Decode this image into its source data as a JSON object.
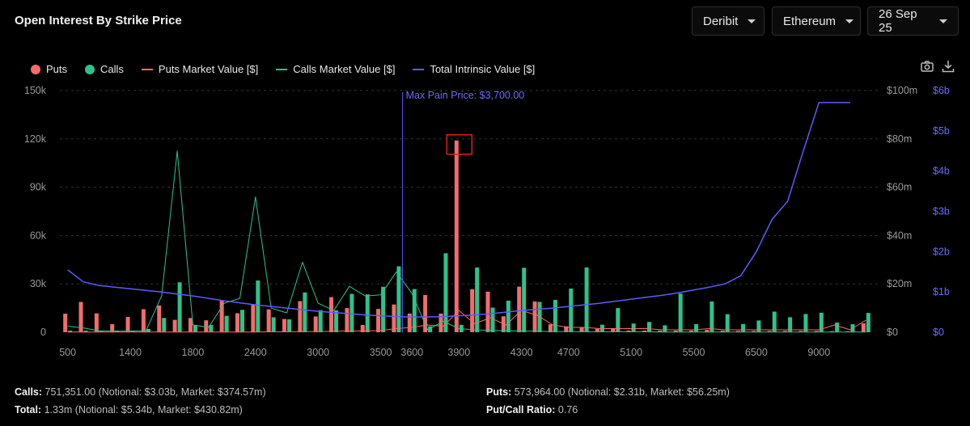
{
  "header": {
    "title": "Open Interest By Strike Price",
    "exchange": "Deribit",
    "asset": "Ethereum",
    "expiry": "26 Sep 25"
  },
  "legend": [
    {
      "label": "Puts",
      "kind": "dot",
      "color": "#f56b6b"
    },
    {
      "label": "Calls",
      "kind": "dot",
      "color": "#2ec28a"
    },
    {
      "label": "Puts Market Value [$]",
      "kind": "line",
      "color": "#f56b6b"
    },
    {
      "label": "Calls Market Value [$]",
      "kind": "line",
      "color": "#2ec28a"
    },
    {
      "label": "Total Intrinsic Value [$]",
      "kind": "line",
      "color": "#5b5bff"
    }
  ],
  "toolbar": {
    "camera": "camera-icon",
    "download": "download-icon"
  },
  "chart_data": {
    "type": "bar",
    "annotation": "Max Pain Price: $3,700.00",
    "max_pain_index": 22,
    "highlight_index": 25,
    "y_left_ticks": [
      "0",
      "30k",
      "60k",
      "90k",
      "120k",
      "150k"
    ],
    "y_left_range": [
      0,
      150000
    ],
    "y_mid_ticks": [
      "$0",
      "$20m",
      "$40m",
      "$60m",
      "$80m",
      "$100m"
    ],
    "y_mid_range": [
      0,
      100
    ],
    "y_right_ticks": [
      "$0",
      "$1b",
      "$2b",
      "$3b",
      "$4b",
      "$5b",
      "$6b"
    ],
    "y_right_range": [
      0,
      6
    ],
    "x_tick_labels": [
      "500",
      "1400",
      "1800",
      "2400",
      "3000",
      "3500",
      "3600",
      "3900",
      "4300",
      "4700",
      "5100",
      "5500",
      "6500",
      "9000"
    ],
    "x_tick_indices": [
      0,
      4,
      8,
      12,
      16,
      20,
      22,
      25,
      29,
      32,
      36,
      40,
      44,
      48
    ],
    "n_strikes": 52,
    "puts_oi": [
      11500,
      18800,
      11700,
      5000,
      9500,
      14300,
      16600,
      7700,
      8800,
      7400,
      19500,
      11800,
      17400,
      14200,
      8200,
      19300,
      9800,
      21800,
      15000,
      4500,
      14500,
      17200,
      11600,
      23100,
      11600,
      119000,
      26700,
      25200,
      9900,
      28300,
      19100,
      4900,
      3700,
      3200,
      2100,
      2100,
      1000,
      1000,
      1000,
      1000,
      1000,
      1500,
      1000,
      800,
      800,
      800,
      800,
      800,
      800,
      700,
      600,
      5500
    ],
    "calls_oi": [
      1000,
      1000,
      1000,
      1000,
      1000,
      2000,
      8900,
      31000,
      4500,
      4500,
      10200,
      13900,
      32100,
      9300,
      8000,
      24700,
      13700,
      13600,
      23800,
      23500,
      28200,
      40900,
      26800,
      3700,
      49000,
      4600,
      40200,
      15300,
      19600,
      40000,
      18800,
      20100,
      27100,
      40200,
      4700,
      15000,
      5400,
      6400,
      4300,
      24000,
      5000,
      19100,
      11200,
      5100,
      7300,
      12800,
      9300,
      11300,
      12100,
      6000,
      5000,
      12000
    ],
    "calls_market_value_m": [
      2.5,
      1.8,
      0.6,
      0.4,
      0.5,
      0.6,
      15.0,
      75.0,
      3.0,
      2.0,
      12.0,
      14.0,
      56.0,
      10.0,
      8.0,
      29.0,
      12.0,
      9.0,
      19.0,
      15.0,
      15.5,
      25.0,
      16.0,
      1.0,
      4.5,
      1.5,
      1.0,
      0.8,
      0.6,
      0.5,
      0.4,
      0.3,
      0.3,
      0.2,
      0.2,
      0.2,
      0.2,
      0.2,
      0.1,
      0.1,
      0.1,
      0.1,
      0.1,
      0.1,
      0.1,
      0.1,
      0.1,
      0.1,
      0.1,
      0.1,
      0.1,
      0.1
    ],
    "puts_market_value_m": [
      0.1,
      0.1,
      0.1,
      0.1,
      0.1,
      0.1,
      0.1,
      0.1,
      0.1,
      0.1,
      0.1,
      0.1,
      0.1,
      0.2,
      0.2,
      0.3,
      0.3,
      0.4,
      0.5,
      0.5,
      0.7,
      1.5,
      2.0,
      3.0,
      2.5,
      9.0,
      3.5,
      6.0,
      3.0,
      9.0,
      7.0,
      3.0,
      2.0,
      2.0,
      1.5,
      1.5,
      1.5,
      1.5,
      1.0,
      1.0,
      1.0,
      1.5,
      1.0,
      1.0,
      1.0,
      1.0,
      1.0,
      1.0,
      1.0,
      3.0,
      1.0,
      5.0
    ],
    "intrinsic_value_b": [
      1.55,
      1.25,
      1.16,
      1.12,
      1.08,
      1.04,
      1.0,
      0.95,
      0.9,
      0.84,
      0.78,
      0.73,
      0.68,
      0.64,
      0.6,
      0.56,
      0.52,
      0.49,
      0.46,
      0.43,
      0.41,
      0.39,
      0.38,
      0.38,
      0.39,
      0.41,
      0.43,
      0.46,
      0.5,
      0.54,
      0.57,
      0.6,
      0.64,
      0.68,
      0.72,
      0.77,
      0.82,
      0.87,
      0.92,
      0.98,
      1.05,
      1.12,
      1.2,
      1.4,
      2.0,
      2.8,
      3.25,
      4.5,
      5.7,
      5.7,
      5.7,
      5.7
    ]
  },
  "summary": {
    "calls_label": "Calls:",
    "calls_value": "751,351.00 (Notional: $3.03b, Market: $374.57m)",
    "total_label": "Total:",
    "total_value": "1.33m (Notional: $5.34b, Market: $430.82m)",
    "puts_label": "Puts:",
    "puts_value": "573,964.00 (Notional: $2.31b, Market: $56.25m)",
    "ratio_label": "Put/Call Ratio:",
    "ratio_value": "0.76"
  }
}
